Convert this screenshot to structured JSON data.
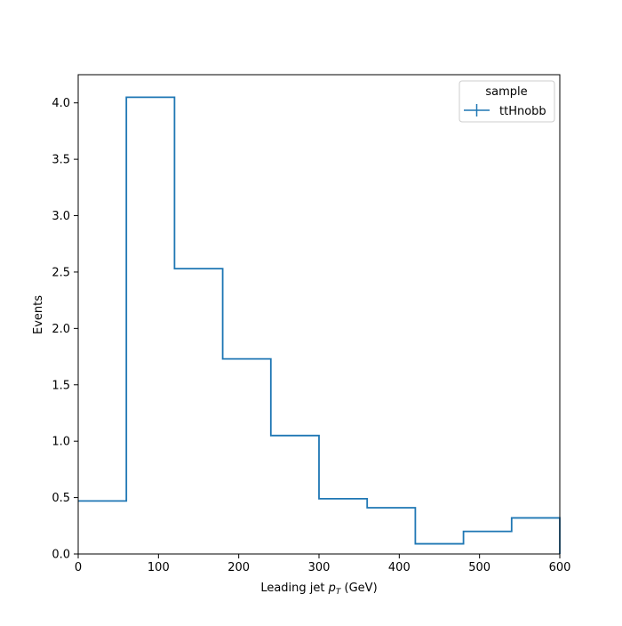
{
  "chart_data": {
    "type": "histogram",
    "xlabel_main": "Leading jet ",
    "xlabel_var": "p",
    "xlabel_sub": "T",
    "xlabel_unit": " (GeV)",
    "ylabel": "Events",
    "xlim": [
      0,
      600
    ],
    "ylim": [
      0,
      4.25
    ],
    "grid": false,
    "bin_edges": [
      0,
      60,
      120,
      180,
      240,
      300,
      360,
      420,
      480,
      540,
      600
    ],
    "values": [
      0.47,
      4.05,
      2.53,
      1.73,
      1.05,
      0.49,
      0.41,
      0.09,
      0.2,
      0.32
    ],
    "xticks": [
      0,
      100,
      200,
      300,
      400,
      500,
      600
    ],
    "xtick_labels": [
      "0",
      "100",
      "200",
      "300",
      "400",
      "500",
      "600"
    ],
    "yticks": [
      0,
      0.5,
      1.0,
      1.5,
      2.0,
      2.5,
      3.0,
      3.5,
      4.0
    ],
    "ytick_labels": [
      "0.0",
      "0.5",
      "1.0",
      "1.5",
      "2.0",
      "2.5",
      "3.0",
      "3.5",
      "4.0"
    ],
    "series": [
      {
        "name": "ttHnobb",
        "color": "#1f77b4"
      }
    ],
    "legend": {
      "title": "sample",
      "placement": "top-right"
    }
  }
}
